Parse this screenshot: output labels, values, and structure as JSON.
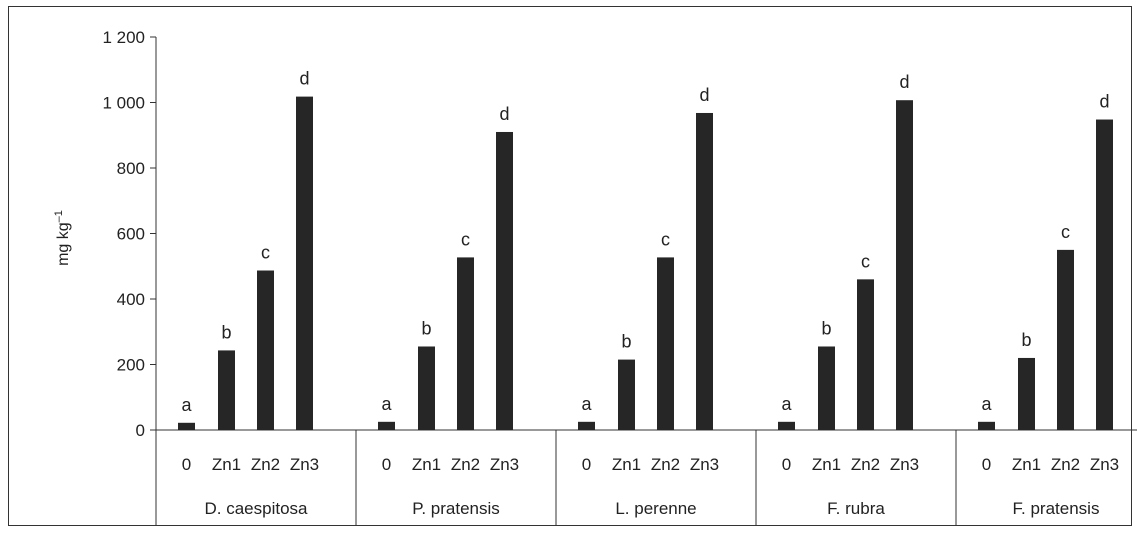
{
  "chart_data": {
    "type": "bar",
    "ylabel": "mg kg",
    "ylabel_sup": "–1",
    "ylim": [
      0,
      1200
    ],
    "yticks": [
      0,
      200,
      400,
      600,
      800,
      1000,
      1200
    ],
    "ytick_labels": [
      "0",
      "200",
      "400",
      "600",
      "800",
      "1 000",
      "1 200"
    ],
    "grid": false,
    "bar_color": "#262626",
    "categories": [
      "0",
      "Zn1",
      "Zn2",
      "Zn3"
    ],
    "groups": [
      {
        "name": "D. caespitosa",
        "values": [
          22,
          243,
          487,
          1018
        ],
        "labels": [
          "a",
          "b",
          "c",
          "d"
        ]
      },
      {
        "name": "P. pratensis",
        "values": [
          25,
          255,
          527,
          910
        ],
        "labels": [
          "a",
          "b",
          "c",
          "d"
        ]
      },
      {
        "name": "L. perenne",
        "values": [
          25,
          215,
          527,
          968
        ],
        "labels": [
          "a",
          "b",
          "c",
          "d"
        ]
      },
      {
        "name": "F. rubra",
        "values": [
          25,
          255,
          460,
          1007
        ],
        "labels": [
          "a",
          "b",
          "c",
          "d"
        ]
      },
      {
        "name": "F. pratensis",
        "values": [
          25,
          220,
          550,
          948
        ],
        "labels": [
          "a",
          "b",
          "c",
          "d"
        ]
      }
    ]
  }
}
